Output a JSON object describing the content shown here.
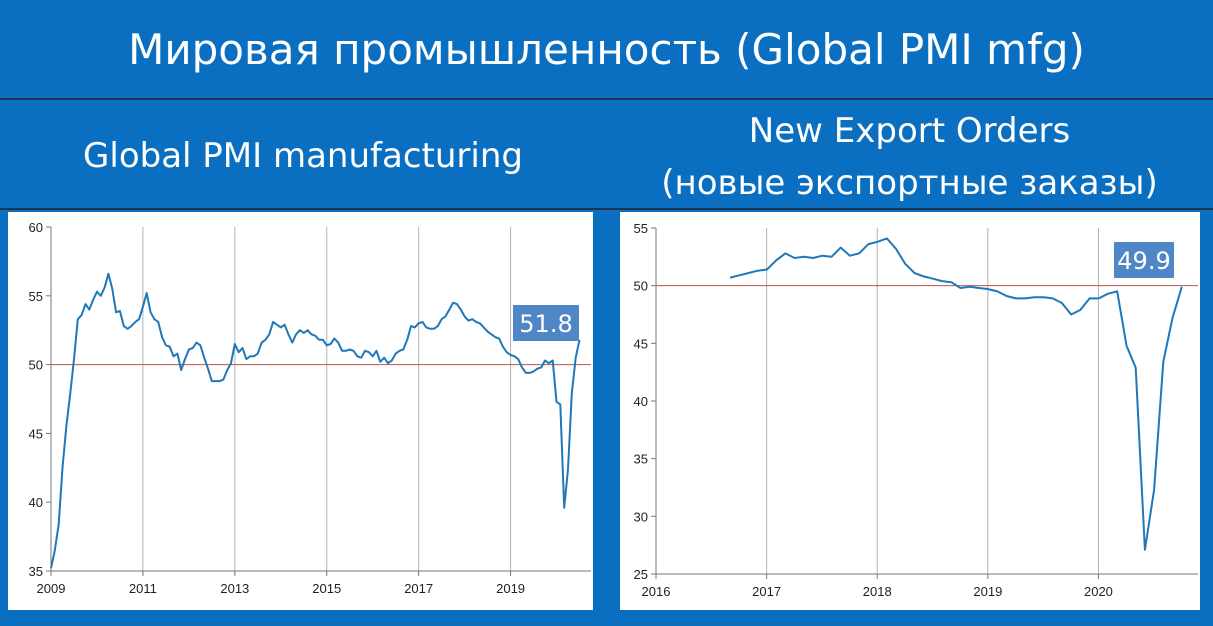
{
  "header": {
    "title": "Мировая промышленность (Global PMI mfg)"
  },
  "left_panel": {
    "subtitle": "Global PMI manufacturing",
    "badge": "51.8"
  },
  "right_panel": {
    "subtitle_line1": "New Export Orders",
    "subtitle_line2": "(новые экспортные заказы)",
    "badge": "49.9"
  },
  "colors": {
    "background": "#0a6fc0",
    "line": "#1f78b9",
    "reference": "#c0504d",
    "badge": "#4f86c6"
  },
  "chart_data": [
    {
      "type": "line",
      "title": "Global PMI manufacturing",
      "x_ticks": [
        "2009",
        "2011",
        "2013",
        "2015",
        "2017",
        "2019"
      ],
      "y_ticks": [
        "35",
        "40",
        "45",
        "50",
        "55",
        "60"
      ],
      "xlim": [
        2009.0,
        2020.75
      ],
      "ylim": [
        35,
        60
      ],
      "reference_line": 50,
      "grid": "vertical",
      "annotation": "51.8",
      "series": [
        {
          "x_start": 2009.0,
          "step": 0.08333,
          "values": [
            35.2,
            36.5,
            38.4,
            42.5,
            45.5,
            47.8,
            50.4,
            53.3,
            53.6,
            54.4,
            54.0,
            54.7,
            55.3,
            55.0,
            55.6,
            56.6,
            55.5,
            53.8,
            53.9,
            52.8,
            52.6,
            52.8,
            53.1,
            53.3,
            54.2,
            55.2,
            53.8,
            53.3,
            53.1,
            52.0,
            51.4,
            51.3,
            50.6,
            50.8,
            49.6,
            50.4,
            51.1,
            51.2,
            51.6,
            51.4,
            50.5,
            49.7,
            48.8,
            48.8,
            48.8,
            48.9,
            49.6,
            50.1,
            51.5,
            50.9,
            51.2,
            50.4,
            50.6,
            50.6,
            50.8,
            51.6,
            51.8,
            52.2,
            53.1,
            52.9,
            52.7,
            52.9,
            52.2,
            51.6,
            52.2,
            52.5,
            52.3,
            52.5,
            52.2,
            52.1,
            51.8,
            51.8,
            51.4,
            51.5,
            51.9,
            51.6,
            51.0,
            51.0,
            51.1,
            51.0,
            50.6,
            50.5,
            51.0,
            50.9,
            50.6,
            51.0,
            50.2,
            50.5,
            50.1,
            50.3,
            50.8,
            51.0,
            51.1,
            51.8,
            52.8,
            52.7,
            53.0,
            53.1,
            52.7,
            52.6,
            52.6,
            52.8,
            53.3,
            53.5,
            54.0,
            54.5,
            54.4,
            54.0,
            53.5,
            53.2,
            53.3,
            53.1,
            53.0,
            52.7,
            52.4,
            52.2,
            52.0,
            51.9,
            51.3,
            50.9,
            50.7,
            50.6,
            50.4,
            49.8,
            49.4,
            49.4,
            49.5,
            49.7,
            49.8,
            50.3,
            50.1,
            50.3,
            47.3,
            47.1,
            39.6,
            42.4,
            47.9,
            50.5,
            51.8
          ]
        }
      ]
    },
    {
      "type": "line",
      "title": "New Export Orders (новые экспортные заказы)",
      "x_ticks": [
        "2016",
        "2017",
        "2018",
        "2019",
        "2020"
      ],
      "y_ticks": [
        "25",
        "30",
        "35",
        "40",
        "45",
        "50",
        "55"
      ],
      "xlim": [
        2016.0,
        2020.9
      ],
      "ylim": [
        25,
        55
      ],
      "reference_line": 50,
      "grid": "vertical",
      "annotation": "49.9",
      "series": [
        {
          "x_start": 2016.67,
          "step": 0.08333,
          "values": [
            50.7,
            50.9,
            51.1,
            51.3,
            51.4,
            52.2,
            52.8,
            52.4,
            52.5,
            52.4,
            52.6,
            52.5,
            53.3,
            52.6,
            52.8,
            53.6,
            53.8,
            54.1,
            53.2,
            51.9,
            51.1,
            50.8,
            50.6,
            50.4,
            50.3,
            49.8,
            49.9,
            49.8,
            49.7,
            49.5,
            49.1,
            48.9,
            48.9,
            49.0,
            49.0,
            48.9,
            48.5,
            47.5,
            47.9,
            48.9,
            48.9,
            49.3,
            49.5,
            44.8,
            42.9,
            27.1,
            32.3,
            43.4,
            47.2,
            49.9
          ]
        }
      ]
    }
  ]
}
